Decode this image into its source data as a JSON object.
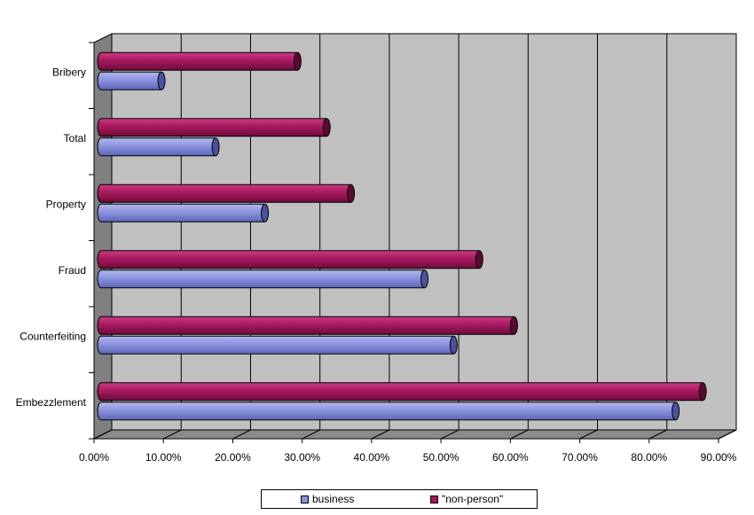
{
  "chart_data": {
    "type": "bar",
    "orientation": "horizontal",
    "style": "3d-cylinder",
    "categories": [
      "Bribery",
      "Total",
      "Property",
      "Fraud",
      "Counterfeiting",
      "Embezzlement"
    ],
    "series": [
      {
        "name": "\"non-person\"",
        "values": [
          28.3,
          32.5,
          36.0,
          54.5,
          59.5,
          86.7
        ],
        "color": "#a8195f"
      },
      {
        "name": "business",
        "values": [
          8.7,
          16.5,
          23.6,
          46.6,
          50.8,
          82.8
        ],
        "color": "#8b93dd"
      }
    ],
    "xlim": [
      0,
      90
    ],
    "xticks": [
      "0.00%",
      "10.00%",
      "20.00%",
      "30.00%",
      "40.00%",
      "50.00%",
      "60.00%",
      "70.00%",
      "80.00%",
      "90.00%"
    ],
    "grid": true,
    "plot_background": "#c0c0c0",
    "legend_position": "bottom-center",
    "title": "",
    "xlabel": "",
    "ylabel": ""
  },
  "legend": {
    "business": "business",
    "non_person": "\"non-person\""
  }
}
